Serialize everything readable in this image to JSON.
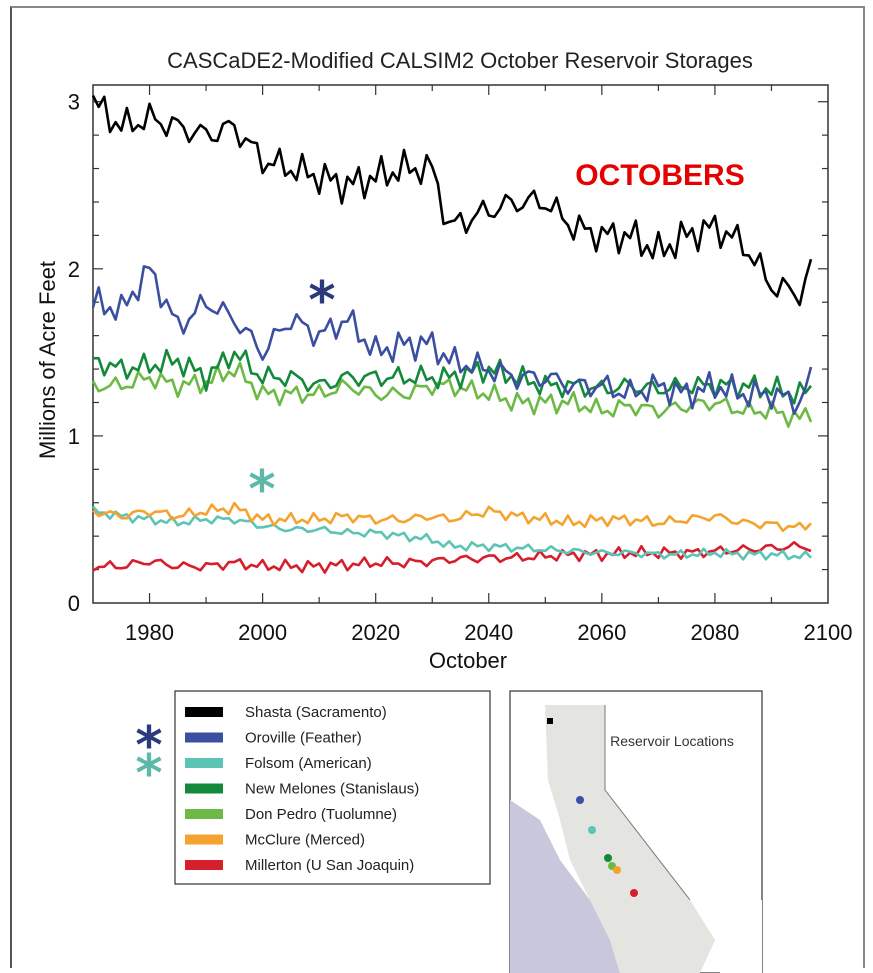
{
  "chart_data": {
    "type": "line",
    "title": "CASCaDE2-Modified CALSIM2 October Reservoir Storages",
    "xlabel": "October",
    "ylabel": "Millions of Acre Feet",
    "xlim": [
      1970,
      2100
    ],
    "ylim": [
      0,
      3.1
    ],
    "x_ticks": [
      1980,
      2000,
      2020,
      2040,
      2060,
      2080,
      2100
    ],
    "y_ticks": [
      0,
      1,
      2,
      3
    ],
    "x_tick_labels": [
      "1980",
      "2000",
      "2020",
      "2040",
      "2060",
      "2080",
      "2100"
    ],
    "y_tick_labels": [
      "0",
      "1",
      "2",
      "3"
    ],
    "grid": false,
    "annotation": {
      "text": "OCTOBERS",
      "color": "#e60000"
    },
    "legend_position": "below-left",
    "series": [
      {
        "name": "Shasta (Sacramento)",
        "color": "#000000",
        "x": [
          1970,
          1975,
          1980,
          1985,
          1990,
          1995,
          2000,
          2005,
          2010,
          2015,
          2020,
          2025,
          2030,
          2033,
          2040,
          2045,
          2050,
          2055,
          2060,
          2065,
          2070,
          2075,
          2080,
          2085,
          2090,
          2095,
          2097
        ],
        "y": [
          3.0,
          2.85,
          2.9,
          2.85,
          2.8,
          2.85,
          2.65,
          2.6,
          2.55,
          2.5,
          2.55,
          2.6,
          2.6,
          2.25,
          2.35,
          2.4,
          2.4,
          2.25,
          2.2,
          2.2,
          2.1,
          2.2,
          2.25,
          2.15,
          1.9,
          1.85,
          2.0
        ]
      },
      {
        "name": "Oroville (Feather)",
        "color": "#3b4fa0",
        "x": [
          1970,
          1975,
          1980,
          1985,
          1990,
          1995,
          2000,
          2005,
          2010,
          2015,
          2020,
          2025,
          2030,
          2033,
          2040,
          2045,
          2050,
          2055,
          2060,
          2065,
          2070,
          2075,
          2080,
          2085,
          2090,
          2095,
          2097
        ],
        "y": [
          1.8,
          1.75,
          2.0,
          1.65,
          1.8,
          1.7,
          1.5,
          1.7,
          1.6,
          1.7,
          1.5,
          1.55,
          1.55,
          1.45,
          1.4,
          1.35,
          1.35,
          1.3,
          1.3,
          1.25,
          1.3,
          1.25,
          1.3,
          1.25,
          1.25,
          1.2,
          1.35
        ]
      },
      {
        "name": "Folsom (American)",
        "color": "#5cc4b4",
        "x": [
          1970,
          1975,
          1980,
          1985,
          1990,
          1995,
          2000,
          2005,
          2010,
          2015,
          2020,
          2025,
          2030,
          2033,
          2040,
          2045,
          2050,
          2055,
          2060,
          2065,
          2070,
          2075,
          2080,
          2085,
          2090,
          2095,
          2097
        ],
        "y": [
          0.55,
          0.52,
          0.5,
          0.48,
          0.5,
          0.5,
          0.46,
          0.44,
          0.44,
          0.42,
          0.42,
          0.4,
          0.38,
          0.34,
          0.34,
          0.33,
          0.32,
          0.31,
          0.3,
          0.3,
          0.29,
          0.29,
          0.3,
          0.29,
          0.29,
          0.28,
          0.28
        ]
      },
      {
        "name": "New Melones (Stanislaus)",
        "color": "#138a3a",
        "x": [
          1970,
          1975,
          1980,
          1985,
          1990,
          1995,
          2000,
          2005,
          2010,
          2015,
          2020,
          2025,
          2030,
          2033,
          2040,
          2045,
          2050,
          2055,
          2060,
          2065,
          2070,
          2075,
          2080,
          2085,
          2090,
          2095,
          2097
        ],
        "y": [
          1.45,
          1.4,
          1.42,
          1.45,
          1.35,
          1.5,
          1.35,
          1.35,
          1.3,
          1.35,
          1.35,
          1.35,
          1.35,
          1.35,
          1.4,
          1.35,
          1.3,
          1.3,
          1.28,
          1.3,
          1.28,
          1.3,
          1.3,
          1.3,
          1.28,
          1.25,
          1.28
        ]
      },
      {
        "name": "Don Pedro (Tuolumne)",
        "color": "#6cba45",
        "x": [
          1970,
          1975,
          1980,
          1985,
          1990,
          1995,
          2000,
          2005,
          2010,
          2015,
          2020,
          2025,
          2030,
          2033,
          2040,
          2045,
          2050,
          2055,
          2060,
          2065,
          2070,
          2075,
          2080,
          2085,
          2090,
          2095,
          2097
        ],
        "y": [
          1.3,
          1.3,
          1.35,
          1.3,
          1.32,
          1.4,
          1.25,
          1.25,
          1.25,
          1.3,
          1.25,
          1.25,
          1.3,
          1.3,
          1.25,
          1.2,
          1.2,
          1.2,
          1.15,
          1.18,
          1.15,
          1.18,
          1.2,
          1.15,
          1.15,
          1.1,
          1.15
        ]
      },
      {
        "name": "McClure (Merced)",
        "color": "#f5a32f",
        "x": [
          1970,
          1975,
          1980,
          1985,
          1990,
          1995,
          2000,
          2005,
          2010,
          2015,
          2020,
          2025,
          2030,
          2033,
          2040,
          2045,
          2050,
          2055,
          2060,
          2065,
          2070,
          2075,
          2080,
          2085,
          2090,
          2095,
          2097
        ],
        "y": [
          0.55,
          0.52,
          0.55,
          0.52,
          0.55,
          0.57,
          0.5,
          0.5,
          0.5,
          0.52,
          0.5,
          0.5,
          0.52,
          0.5,
          0.55,
          0.52,
          0.5,
          0.48,
          0.5,
          0.5,
          0.48,
          0.5,
          0.52,
          0.48,
          0.47,
          0.45,
          0.48
        ]
      },
      {
        "name": "Millerton (U San Joaquin)",
        "color": "#d61f2c",
        "x": [
          1970,
          1975,
          1980,
          1985,
          1990,
          1995,
          2000,
          2005,
          2010,
          2015,
          2020,
          2025,
          2030,
          2033,
          2040,
          2045,
          2050,
          2055,
          2060,
          2065,
          2070,
          2075,
          2080,
          2085,
          2090,
          2095,
          2097
        ],
        "y": [
          0.22,
          0.22,
          0.25,
          0.22,
          0.22,
          0.24,
          0.22,
          0.22,
          0.22,
          0.23,
          0.24,
          0.24,
          0.25,
          0.26,
          0.27,
          0.27,
          0.28,
          0.29,
          0.29,
          0.3,
          0.3,
          0.3,
          0.31,
          0.32,
          0.33,
          0.34,
          0.33
        ]
      }
    ]
  },
  "map": {
    "label": "Reservoir Locations",
    "markers": [
      {
        "series": "Shasta (Sacramento)",
        "color": "#000000"
      },
      {
        "series": "Oroville (Feather)",
        "color": "#3b4fa0"
      },
      {
        "series": "Folsom (American)",
        "color": "#5cc4b4"
      },
      {
        "series": "New Melones (Stanislaus)",
        "color": "#138a3a"
      },
      {
        "series": "Don Pedro (Tuolumne)",
        "color": "#6cba45"
      },
      {
        "series": "McClure (Merced)",
        "color": "#f5a32f"
      },
      {
        "series": "Millerton (U San Joaquin)",
        "color": "#d61f2c"
      }
    ]
  },
  "markers": {
    "oroville_star": {
      "glyph": "*",
      "color": "#2a3a7a"
    },
    "folsom_star": {
      "glyph": "*",
      "color": "#5cb8a8"
    }
  }
}
